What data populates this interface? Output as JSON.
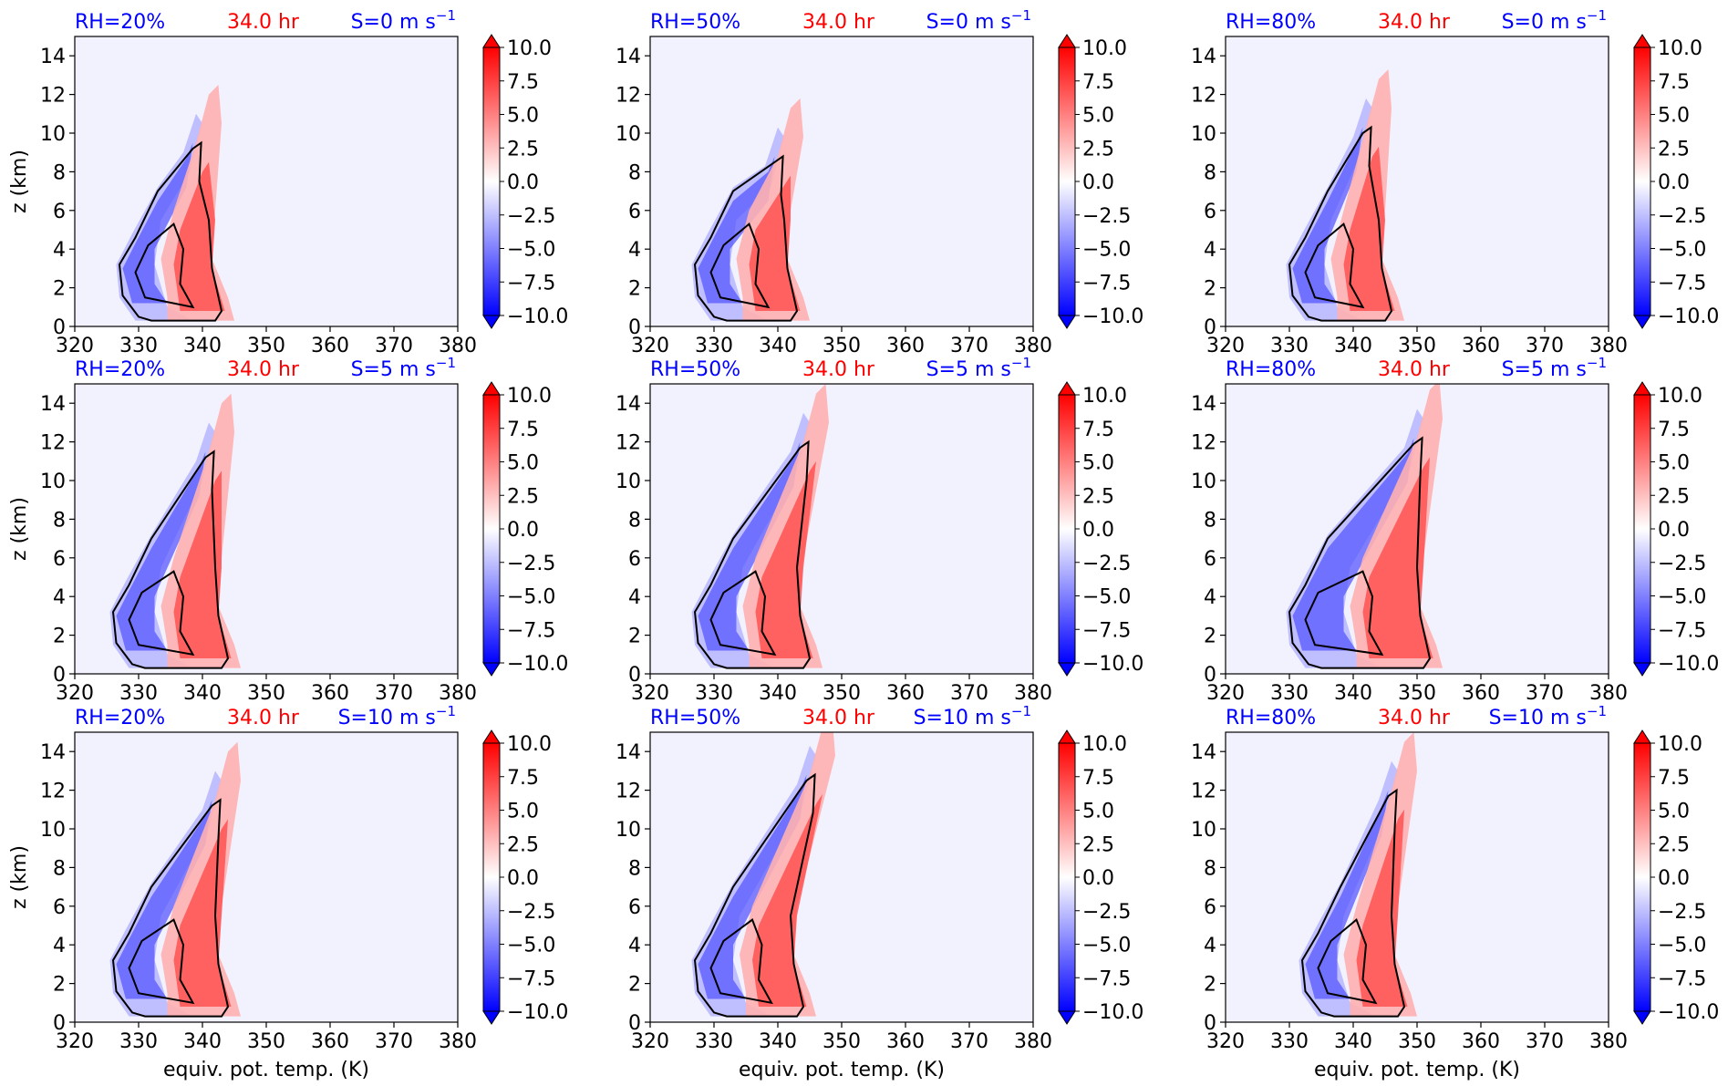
{
  "figure": {
    "time_label": "34.0 hr",
    "xlabel": "equiv. pot. temp. (K)",
    "ylabel": "z (km)",
    "rh_labels": [
      "RH=20%",
      "RH=50%",
      "RH=80%"
    ],
    "shear_labels": [
      {
        "text": "S=0 m s",
        "exp": "−1"
      },
      {
        "text": "S=5 m s",
        "exp": "−1"
      },
      {
        "text": "S=10 m s",
        "exp": "−1"
      }
    ],
    "colors": {
      "rh": "#0000ff",
      "time": "#ff0000",
      "contour": "#000000",
      "background": "#f2f2ff"
    }
  },
  "chart_data": {
    "type": "contour",
    "panel_grid": {
      "rows": 3,
      "cols": 3
    },
    "xlim": [
      320,
      380
    ],
    "ylim": [
      0,
      15
    ],
    "xticks": [
      "320",
      "330",
      "340",
      "350",
      "360",
      "370",
      "380"
    ],
    "yticks": [
      "0",
      "2",
      "4",
      "6",
      "8",
      "10",
      "12",
      "14"
    ],
    "colorbar": {
      "min": -10,
      "max": 10,
      "ticks": [
        "10.0",
        "7.5",
        "5.0",
        "2.5",
        "0.0",
        "−2.5",
        "−5.0",
        "−7.5",
        "−10.0"
      ],
      "colormap": "bwr",
      "extend": "both"
    },
    "panels": [
      {
        "row": 0,
        "col": 0,
        "rh": 20,
        "shear": 0,
        "theta_min": 328,
        "theta_max": 343,
        "theta_top": 341,
        "z_top": 9.5,
        "z_center": 3
      },
      {
        "row": 0,
        "col": 1,
        "rh": 50,
        "shear": 0,
        "theta_min": 328,
        "theta_max": 343,
        "theta_top": 342,
        "z_top": 8.8,
        "z_center": 3
      },
      {
        "row": 0,
        "col": 2,
        "rh": 80,
        "shear": 0,
        "theta_min": 331,
        "theta_max": 346,
        "theta_top": 344,
        "z_top": 10.3,
        "z_center": 3
      },
      {
        "row": 1,
        "col": 0,
        "rh": 20,
        "shear": 5,
        "theta_min": 327,
        "theta_max": 344,
        "theta_top": 343,
        "z_top": 11.5,
        "z_center": 3
      },
      {
        "row": 1,
        "col": 1,
        "rh": 50,
        "shear": 5,
        "theta_min": 328,
        "theta_max": 345,
        "theta_top": 346,
        "z_top": 12,
        "z_center": 3
      },
      {
        "row": 1,
        "col": 2,
        "rh": 80,
        "shear": 5,
        "theta_min": 331,
        "theta_max": 352,
        "theta_top": 352,
        "z_top": 12.2,
        "z_center": 3
      },
      {
        "row": 2,
        "col": 0,
        "rh": 20,
        "shear": 10,
        "theta_min": 327,
        "theta_max": 344,
        "theta_top": 344,
        "z_top": 11.5,
        "z_center": 3
      },
      {
        "row": 2,
        "col": 1,
        "rh": 50,
        "shear": 10,
        "theta_min": 328,
        "theta_max": 344,
        "theta_top": 347,
        "z_top": 12.8,
        "z_center": 3
      },
      {
        "row": 2,
        "col": 2,
        "rh": 80,
        "shear": 10,
        "theta_min": 333,
        "theta_max": 348,
        "theta_top": 348,
        "z_top": 12,
        "z_center": 3
      }
    ]
  }
}
